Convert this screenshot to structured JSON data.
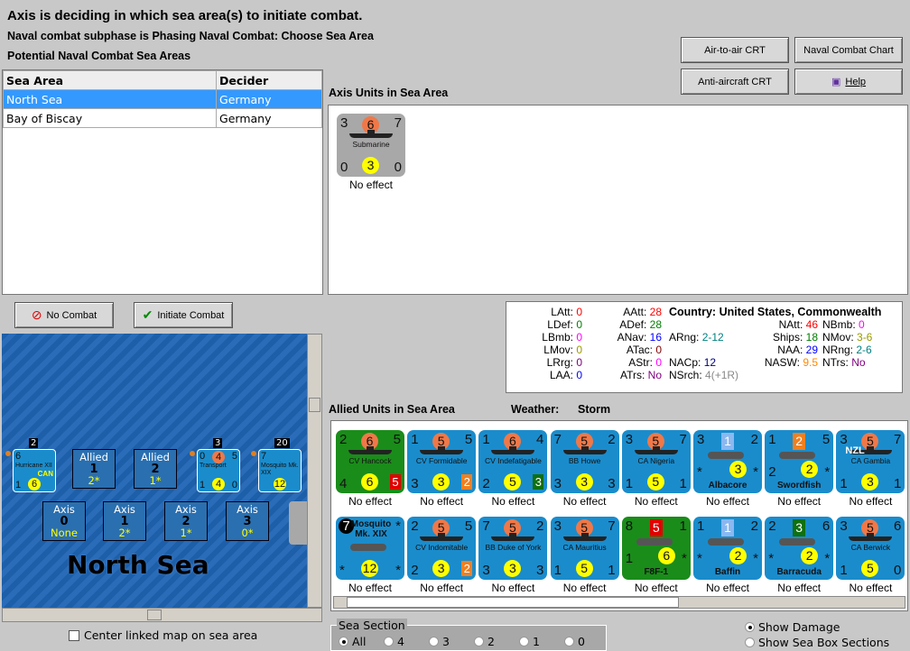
{
  "header": {
    "title": "Axis is deciding in which sea area(s) to initiate combat.",
    "subphase": "Naval combat subphase is Phasing Naval Combat: Choose Sea Area",
    "potential_label": "Potential Naval Combat Sea Areas"
  },
  "buttons": {
    "air_to_air": "Air-to-air CRT",
    "naval_chart": "Naval Combat Chart",
    "anti_aircraft": "Anti-aircraft CRT",
    "help": "Help",
    "no_combat": "No Combat",
    "initiate": "Initiate Combat"
  },
  "sea_table": {
    "columns": [
      "Sea Area",
      "Decider"
    ],
    "rows": [
      [
        "North Sea",
        "Germany"
      ],
      [
        "Bay of Biscay",
        "Germany"
      ]
    ],
    "selected": 0
  },
  "axis_units": {
    "label": "Axis Units in Sea Area",
    "units": [
      {
        "tl": "3",
        "top": "6",
        "tc": "orange",
        "tr": "7",
        "name": "Submarine",
        "bl": "0",
        "bot": "3",
        "bc": "yellow",
        "br": "0",
        "bg": "grey",
        "kind": "sub",
        "result": "No effect"
      }
    ]
  },
  "stats": {
    "country_label": "Country:",
    "country": "United States, Commonwealth",
    "items": [
      {
        "k": "LAtt:",
        "v": "0",
        "c": "#ff0000"
      },
      {
        "k": "LDef:",
        "v": "0",
        "c": "#008000"
      },
      {
        "k": "LBmb:",
        "v": "0",
        "c": "#ff00ff"
      },
      {
        "k": "LMov:",
        "v": "0",
        "c": "#999900"
      },
      {
        "k": "LRrg:",
        "v": "0",
        "c": "#800080"
      },
      {
        "k": "LAA:",
        "v": "0",
        "c": "#0000ff"
      },
      {
        "k": "AAtt:",
        "v": "28",
        "c": "#ff0000"
      },
      {
        "k": "ADef:",
        "v": "28",
        "c": "#008000"
      },
      {
        "k": "ANav:",
        "v": "16",
        "c": "#0000ff"
      },
      {
        "k": "ATac:",
        "v": "0",
        "c": "#800000"
      },
      {
        "k": "AStr:",
        "v": "0",
        "c": "#ff00ff"
      },
      {
        "k": "ATrs:",
        "v": "No",
        "c": "#800080"
      },
      {
        "k": "ARng:",
        "v": "2-12",
        "c": "#008080"
      },
      {
        "k": "NACp:",
        "v": "12",
        "c": "#000080"
      },
      {
        "k": "NSrch:",
        "v": "4(+1R)",
        "c": "#888888"
      },
      {
        "k": "NAtt:",
        "v": "46",
        "c": "#ff0000"
      },
      {
        "k": "Ships:",
        "v": "18",
        "c": "#008000"
      },
      {
        "k": "NAA:",
        "v": "29",
        "c": "#0000ff"
      },
      {
        "k": "NASW:",
        "v": "9.5",
        "c": "#ff8800"
      },
      {
        "k": "NBmb:",
        "v": "0",
        "c": "#ff00ff"
      },
      {
        "k": "NMov:",
        "v": "3-6",
        "c": "#999900"
      },
      {
        "k": "NRng:",
        "v": "2-6",
        "c": "#008080"
      },
      {
        "k": "NTrs:",
        "v": "No",
        "c": "#800080"
      }
    ]
  },
  "allied": {
    "label": "Allied Units in Sea Area",
    "weather_label": "Weather:",
    "weather": "Storm",
    "units": [
      {
        "tl": "2",
        "top": "6",
        "tc": "orange",
        "tr": "5",
        "name": "CV Hancock",
        "bl": "4",
        "bot": "6",
        "bc": "yellow",
        "br": "5",
        "brc": "#e00000",
        "bg": "green",
        "kind": "ship",
        "result": "No effect"
      },
      {
        "tl": "1",
        "top": "5",
        "tc": "orange",
        "tr": "5",
        "name": "CV Formidable",
        "bl": "3",
        "bot": "3",
        "bc": "yellow",
        "br": "2",
        "brc": "#f08020",
        "kind": "ship",
        "result": "No effect"
      },
      {
        "tl": "1",
        "top": "6",
        "tc": "orange",
        "tr": "4",
        "name": "CV Indefatigable",
        "bl": "2",
        "bot": "5",
        "bc": "yellow",
        "br": "3",
        "brc": "#107010",
        "kind": "ship",
        "result": "No effect"
      },
      {
        "tl": "7",
        "top": "5",
        "tc": "orange",
        "tr": "2",
        "name": "BB Howe",
        "bl": "3",
        "bot": "3",
        "bc": "yellow",
        "br": "3",
        "kind": "ship",
        "result": "No effect"
      },
      {
        "tl": "3",
        "top": "5",
        "tc": "orange",
        "tr": "7",
        "name": "CA Nigeria",
        "bl": "1",
        "bot": "5",
        "bc": "yellow",
        "br": "1",
        "kind": "ship",
        "result": "No effect"
      },
      {
        "tl": "3",
        "top": "1",
        "tc": "lightblue",
        "tr": "2",
        "name": "Albacore",
        "bl": "*",
        "bot": "3",
        "bc": "yellow",
        "br": "*",
        "kind": "plane",
        "result": "No effect"
      },
      {
        "tl": "1",
        "top": "2",
        "tc": "orangesq",
        "tr": "5",
        "name": "Swordfish",
        "bl": "2",
        "bot": "2",
        "bc": "yellow",
        "br": "*",
        "kind": "plane",
        "result": "No effect"
      },
      {
        "tl": "3",
        "top": "5",
        "tc": "orange",
        "tr": "7",
        "name": "CA Gambia",
        "nat": "NZL",
        "bl": "1",
        "bot": "3",
        "bc": "yellow",
        "br": "1",
        "kind": "ship",
        "result": "No effect"
      },
      {
        "tl": "7",
        "top": "",
        "tc": "",
        "tr": "*",
        "name": "Mosquito Mk. XIX",
        "bl": "*",
        "bot": "12",
        "bc": "yellow",
        "br": "*",
        "kind": "plane",
        "result": "No effect"
      },
      {
        "tl": "2",
        "top": "5",
        "tc": "orange",
        "tr": "5",
        "name": "CV Indomitable",
        "bl": "2",
        "bot": "3",
        "bc": "yellow",
        "br": "2",
        "brc": "#f08020",
        "kind": "ship",
        "result": "No effect"
      },
      {
        "tl": "7",
        "top": "5",
        "tc": "orange",
        "tr": "2",
        "name": "BB Duke of York",
        "bl": "3",
        "bot": "3",
        "bc": "yellow",
        "br": "3",
        "kind": "ship",
        "result": "No effect"
      },
      {
        "tl": "3",
        "top": "5",
        "tc": "orange",
        "tr": "7",
        "name": "CA Mauritius",
        "bl": "1",
        "bot": "5",
        "bc": "yellow",
        "br": "1",
        "kind": "ship",
        "result": "No effect"
      },
      {
        "tl": "8",
        "top": "5",
        "tc": "redsq",
        "tr": "1",
        "name": "F8F-1",
        "bl": "1",
        "bot": "6",
        "bc": "yellow",
        "br": "*",
        "bg": "green",
        "kind": "plane",
        "result": "No effect"
      },
      {
        "tl": "1",
        "top": "1",
        "tc": "lightblue",
        "tr": "2",
        "name": "Baffin",
        "bl": "*",
        "bot": "2",
        "bc": "yellow",
        "br": "*",
        "kind": "plane",
        "result": "No effect"
      },
      {
        "tl": "2",
        "top": "3",
        "tc": "greensq",
        "tr": "6",
        "name": "Barracuda",
        "bl": "*",
        "bot": "2",
        "bc": "yellow",
        "br": "*",
        "kind": "plane",
        "result": "No effect"
      },
      {
        "tl": "3",
        "top": "5",
        "tc": "orange",
        "tr": "6",
        "name": "CA Berwick",
        "bl": "1",
        "bot": "5",
        "bc": "yellow",
        "br": "0",
        "kind": "ship",
        "result": "No effect"
      }
    ]
  },
  "map": {
    "sea_name": "North Sea",
    "allied_boxes": [
      {
        "side": "Allied",
        "num": "1",
        "val": "2*"
      },
      {
        "side": "Allied",
        "num": "2",
        "val": "1*"
      }
    ],
    "axis_boxes": [
      {
        "side": "Axis",
        "num": "0",
        "val": "None"
      },
      {
        "side": "Axis",
        "num": "1",
        "val": "2*"
      },
      {
        "side": "Axis",
        "num": "2",
        "val": "1*"
      },
      {
        "side": "Axis",
        "num": "3",
        "val": "0*"
      }
    ],
    "stack_counts": [
      "2",
      "3",
      "20"
    ],
    "stack_units": [
      {
        "name": "Hurricane XII",
        "nat": "CAN",
        "tl": "6",
        "bl": "1",
        "bot": "6"
      },
      {
        "name": "Transport",
        "tl": "0",
        "top": "4",
        "tr": "5",
        "bl": "1",
        "bot": "4",
        "br": "0"
      },
      {
        "name": "Mosquito Mk. XIX",
        "tl": "7",
        "bot": "12"
      }
    ],
    "center_checkbox": "Center linked map on sea area",
    "center_checked": false
  },
  "sea_section": {
    "label": "Sea Section",
    "options": [
      "All",
      "4",
      "3",
      "2",
      "1",
      "0"
    ],
    "selected": "All"
  },
  "display": {
    "options": [
      "Show Damage",
      "Show Sea Box Sections"
    ],
    "selected": "Show Damage"
  }
}
